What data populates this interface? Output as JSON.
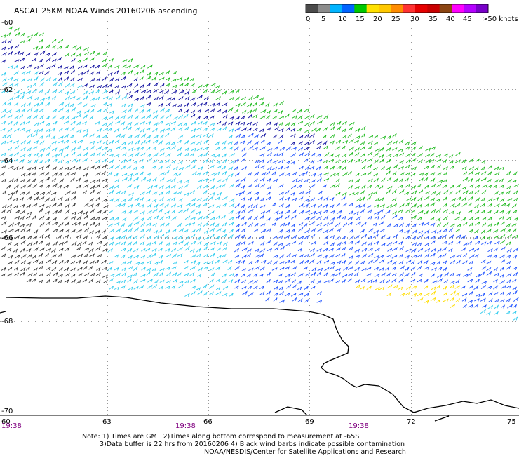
{
  "title": "ASCAT 25KM NOAA Winds 20160206 ascending",
  "legend": {
    "colors": [
      "#4b4b4b",
      "#8c8c8c",
      "#00b4ff",
      "#0064ff",
      "#00c800",
      "#ffe100",
      "#ffc800",
      "#ff8c00",
      "#ff3232",
      "#e60000",
      "#c80000",
      "#8b4513",
      "#ff00ff",
      "#b400ff",
      "#7800c8"
    ],
    "labels": [
      "0",
      "5",
      "10",
      "15",
      "20",
      "25",
      "30",
      "35",
      "40",
      "45",
      ">50 knots"
    ],
    "unit": "knots"
  },
  "axes": {
    "x_ticks": [
      "60",
      "63",
      "66",
      "69",
      "72",
      "75"
    ],
    "y_ticks": [
      "-60",
      "-62",
      "-64",
      "-66",
      "-68",
      "-70"
    ]
  },
  "times": [
    "19:38",
    "19:38",
    "19:38"
  ],
  "notes": [
    "Note: 1) Times are GMT 2)Times along bottom correspond to measurement at -65S",
    "3)Data buffer is 22 hrs from 20160206 4) Black wind barbs indicate possible contamination",
    "NOAA/NESDIS/Center for Satellite Applications and Research"
  ],
  "colors": {
    "gray": "#3a3a3a",
    "light_blue": "#33ccee",
    "blue": "#2255ff",
    "dark_blue": "#1010a0",
    "green": "#22bb22",
    "yellow": "#ffdd00",
    "grid": "#000000",
    "coast": "#000000",
    "time": "#800080"
  }
}
